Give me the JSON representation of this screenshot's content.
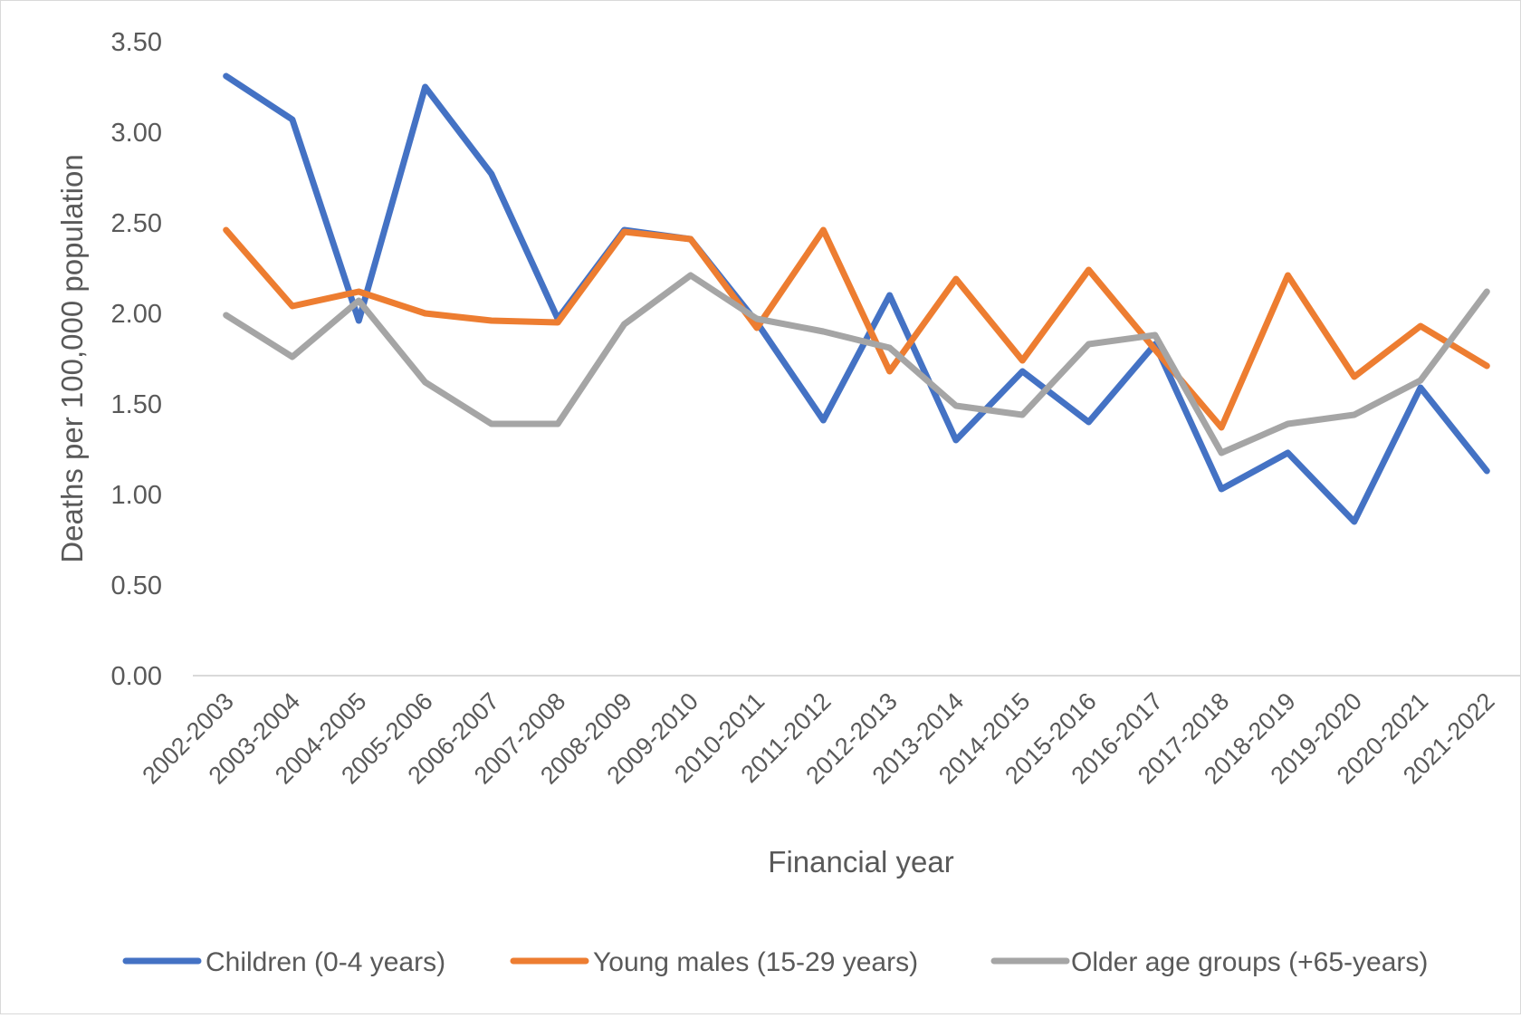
{
  "chart_data": {
    "type": "line",
    "title": "",
    "xlabel": "Financial year",
    "ylabel": "Deaths per 100,000 population",
    "ylim": [
      0,
      3.5
    ],
    "yticks": [
      "0.00",
      "0.50",
      "1.00",
      "1.50",
      "2.00",
      "2.50",
      "3.00",
      "3.50"
    ],
    "grid": "horizontal baseline only",
    "legend_position": "bottom",
    "categories": [
      "2002-2003",
      "2003-2004",
      "2004-2005",
      "2005-2006",
      "2006-2007",
      "2007-2008",
      "2008-2009",
      "2009-2010",
      "2010-2011",
      "2011-2012",
      "2012-2013",
      "2013-2014",
      "2014-2015",
      "2015-2016",
      "2016-2017",
      "2017-2018",
      "2018-2019",
      "2019-2020",
      "2020-2021",
      "2021-2022"
    ],
    "series": [
      {
        "name": "Children (0-4 years)",
        "color": "#4472c4",
        "values": [
          3.31,
          3.07,
          1.96,
          3.25,
          2.77,
          1.97,
          2.46,
          2.41,
          1.95,
          1.41,
          2.1,
          1.3,
          1.68,
          1.4,
          1.83,
          1.03,
          1.23,
          0.85,
          1.59,
          1.13
        ]
      },
      {
        "name": "Young males (15-29 years)",
        "color": "#ed7d31",
        "values": [
          2.46,
          2.04,
          2.12,
          2.0,
          1.96,
          1.95,
          2.45,
          2.41,
          1.92,
          2.46,
          1.68,
          2.19,
          1.74,
          2.24,
          1.8,
          1.37,
          2.21,
          1.65,
          1.93,
          1.71
        ]
      },
      {
        "name": "Older age groups (+65-years)",
        "color": "#a5a5a5",
        "values": [
          1.99,
          1.76,
          2.07,
          1.62,
          1.39,
          1.39,
          1.94,
          2.21,
          1.97,
          1.9,
          1.81,
          1.49,
          1.44,
          1.83,
          1.88,
          1.23,
          1.39,
          1.44,
          1.63,
          2.12
        ]
      }
    ]
  }
}
